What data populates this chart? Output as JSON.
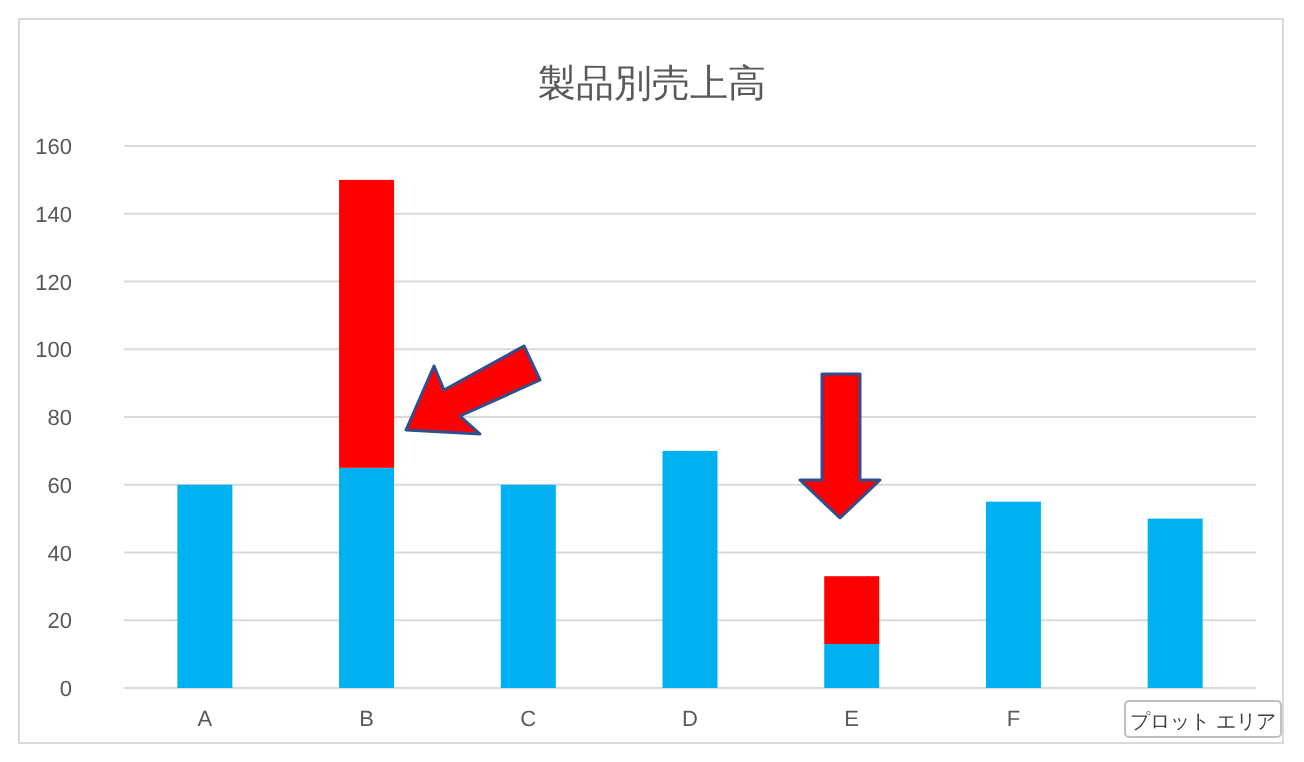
{
  "chart_data": {
    "type": "bar",
    "title": "製品別売上高",
    "categories": [
      "A",
      "B",
      "C",
      "D",
      "E",
      "F",
      null
    ],
    "stacked": true,
    "series": [
      {
        "color": "#00b0f0",
        "values": [
          60,
          65,
          60,
          70,
          13,
          55,
          50
        ]
      },
      {
        "color": "#ff0000",
        "values": [
          null,
          85,
          null,
          null,
          20,
          null,
          null
        ]
      }
    ],
    "ylim": [
      0,
      160
    ],
    "yticks": [
      0,
      20,
      40,
      60,
      80,
      100,
      120,
      140,
      160
    ],
    "grid": "y",
    "annotations": [
      "プロット エリア"
    ]
  }
}
